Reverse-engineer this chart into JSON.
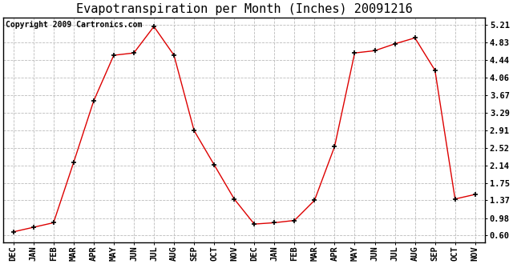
{
  "title": "Evapotranspiration per Month (Inches) 20091216",
  "copyright": "Copyright 2009 Cartronics.com",
  "x_labels": [
    "DEC",
    "JAN",
    "FEB",
    "MAR",
    "APR",
    "MAY",
    "JUN",
    "JUL",
    "AUG",
    "SEP",
    "OCT",
    "NOV",
    "DEC",
    "JAN",
    "FEB",
    "MAR",
    "APR",
    "MAY",
    "JUN",
    "JUL",
    "AUG",
    "SEP",
    "OCT",
    "NOV"
  ],
  "y_values": [
    0.68,
    0.78,
    0.88,
    2.2,
    3.55,
    4.55,
    4.6,
    5.18,
    4.55,
    2.9,
    2.15,
    1.4,
    0.85,
    0.88,
    0.93,
    1.37,
    2.55,
    4.6,
    4.65,
    4.8,
    4.93,
    4.22,
    1.4,
    1.5
  ],
  "line_color": "#dd0000",
  "marker_color": "#000000",
  "background_color": "#ffffff",
  "grid_color": "#bbbbbb",
  "y_ticks": [
    0.6,
    0.98,
    1.37,
    1.75,
    2.14,
    2.52,
    2.91,
    3.29,
    3.67,
    4.06,
    4.44,
    4.83,
    5.21
  ],
  "ylim": [
    0.45,
    5.38
  ],
  "title_fontsize": 11,
  "copyright_fontsize": 7,
  "tick_fontsize": 7.5
}
